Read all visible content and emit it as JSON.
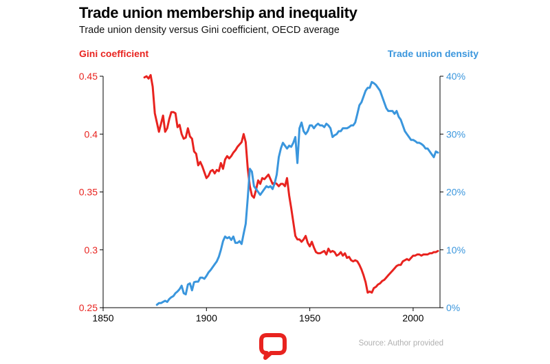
{
  "colors": {
    "gini": "#e8231f",
    "union": "#3a96dd",
    "axis": "#000000",
    "source": "#b0b0b0",
    "logo": "#e8231f"
  },
  "header": {
    "title": "Trade union membership and inequality",
    "subtitle": "Trade union density versus Gini coefficient, OECD average"
  },
  "footer": {
    "source": "Source: Author provided",
    "logo_icon": "speech-bubble-logo-icon"
  },
  "chart_data": {
    "type": "line",
    "title": "Trade union membership and inequality",
    "subtitle": "Trade union density versus Gini coefficient, OECD average",
    "xlabel": "",
    "xlim": [
      1850,
      2013
    ],
    "xticks": [
      1850,
      1900,
      1950,
      2000
    ],
    "ylabel_left": "Gini coefficient",
    "ylim_left": [
      0.25,
      0.45
    ],
    "yticks_left": [
      "0.25",
      "0.3",
      "0.35",
      "0.4",
      "0.45"
    ],
    "ylabel_right": "Trade union density",
    "ylim_right": [
      0,
      40
    ],
    "yticks_right": [
      "0%",
      "10%",
      "20%",
      "30%",
      "40%"
    ],
    "grid": false,
    "series": [
      {
        "name": "Gini coefficient",
        "axis": "left",
        "x": [
          1870,
          1871,
          1872,
          1873,
          1874,
          1875,
          1876,
          1877,
          1878,
          1879,
          1880,
          1881,
          1882,
          1883,
          1884,
          1885,
          1886,
          1887,
          1888,
          1889,
          1890,
          1891,
          1892,
          1893,
          1894,
          1895,
          1896,
          1897,
          1898,
          1899,
          1900,
          1901,
          1902,
          1903,
          1904,
          1905,
          1906,
          1907,
          1908,
          1909,
          1910,
          1911,
          1912,
          1913,
          1914,
          1915,
          1916,
          1917,
          1918,
          1919,
          1920,
          1921,
          1922,
          1923,
          1924,
          1925,
          1926,
          1927,
          1928,
          1929,
          1930,
          1931,
          1932,
          1933,
          1934,
          1935,
          1936,
          1937,
          1938,
          1939,
          1940,
          1941,
          1942,
          1943,
          1944,
          1945,
          1946,
          1947,
          1948,
          1949,
          1950,
          1951,
          1952,
          1953,
          1954,
          1955,
          1956,
          1957,
          1958,
          1959,
          1960,
          1961,
          1962,
          1963,
          1964,
          1965,
          1966,
          1967,
          1968,
          1969,
          1970,
          1971,
          1972,
          1973,
          1974,
          1975,
          1976,
          1977,
          1978,
          1979,
          1980,
          1981,
          1982,
          1983,
          1984,
          1985,
          1986,
          1987,
          1988,
          1989,
          1990,
          1991,
          1992,
          1993,
          1994,
          1995,
          1996,
          1997,
          1998,
          1999,
          2000,
          2001,
          2002,
          2003,
          2004,
          2005,
          2006,
          2007,
          2008,
          2009,
          2010,
          2011,
          2012
        ],
        "values": [
          0.449,
          0.45,
          0.448,
          0.451,
          0.441,
          0.418,
          0.41,
          0.402,
          0.409,
          0.416,
          0.402,
          0.405,
          0.413,
          0.419,
          0.419,
          0.418,
          0.406,
          0.408,
          0.4,
          0.396,
          0.397,
          0.405,
          0.398,
          0.396,
          0.385,
          0.383,
          0.373,
          0.376,
          0.372,
          0.367,
          0.362,
          0.364,
          0.368,
          0.369,
          0.366,
          0.369,
          0.368,
          0.375,
          0.37,
          0.378,
          0.381,
          0.379,
          0.381,
          0.384,
          0.386,
          0.389,
          0.391,
          0.393,
          0.4,
          0.393,
          0.37,
          0.355,
          0.347,
          0.345,
          0.352,
          0.36,
          0.357,
          0.362,
          0.361,
          0.363,
          0.365,
          0.361,
          0.357,
          0.358,
          0.357,
          0.355,
          0.357,
          0.357,
          0.355,
          0.362,
          0.347,
          0.336,
          0.324,
          0.312,
          0.309,
          0.309,
          0.307,
          0.309,
          0.312,
          0.306,
          0.303,
          0.307,
          0.302,
          0.298,
          0.297,
          0.297,
          0.298,
          0.299,
          0.296,
          0.301,
          0.298,
          0.299,
          0.298,
          0.295,
          0.296,
          0.298,
          0.295,
          0.297,
          0.293,
          0.294,
          0.291,
          0.29,
          0.291,
          0.29,
          0.287,
          0.283,
          0.278,
          0.272,
          0.263,
          0.264,
          0.263,
          0.267,
          0.268,
          0.27,
          0.271,
          0.273,
          0.274,
          0.276,
          0.278,
          0.28,
          0.282,
          0.284,
          0.286,
          0.287,
          0.287,
          0.29,
          0.291,
          0.292,
          0.291,
          0.293,
          0.295,
          0.295,
          0.296,
          0.296,
          0.295,
          0.296,
          0.296,
          0.296,
          0.297,
          0.297,
          0.298,
          0.298,
          0.299
        ]
      },
      {
        "name": "Trade union density",
        "axis": "right",
        "x": [
          1876,
          1877,
          1878,
          1879,
          1880,
          1881,
          1882,
          1883,
          1884,
          1885,
          1886,
          1887,
          1888,
          1889,
          1890,
          1891,
          1892,
          1893,
          1894,
          1895,
          1896,
          1897,
          1898,
          1899,
          1900,
          1901,
          1902,
          1903,
          1904,
          1905,
          1906,
          1907,
          1908,
          1909,
          1910,
          1911,
          1912,
          1913,
          1914,
          1915,
          1916,
          1917,
          1918,
          1919,
          1920,
          1921,
          1922,
          1923,
          1924,
          1925,
          1926,
          1927,
          1928,
          1929,
          1930,
          1931,
          1932,
          1933,
          1934,
          1935,
          1936,
          1937,
          1938,
          1939,
          1940,
          1941,
          1942,
          1943,
          1944,
          1945,
          1946,
          1947,
          1948,
          1949,
          1950,
          1951,
          1952,
          1953,
          1954,
          1955,
          1956,
          1957,
          1958,
          1959,
          1960,
          1961,
          1962,
          1963,
          1964,
          1965,
          1966,
          1967,
          1968,
          1969,
          1970,
          1971,
          1972,
          1973,
          1974,
          1975,
          1976,
          1977,
          1978,
          1979,
          1980,
          1981,
          1982,
          1983,
          1984,
          1985,
          1986,
          1987,
          1988,
          1989,
          1990,
          1991,
          1992,
          1993,
          1994,
          1995,
          1996,
          1997,
          1998,
          1999,
          2000,
          2001,
          2002,
          2003,
          2004,
          2005,
          2006,
          2007,
          2008,
          2009,
          2010,
          2011,
          2012
        ],
        "values": [
          0.5,
          0.8,
          0.8,
          1.0,
          1.2,
          1.0,
          1.5,
          1.8,
          2.0,
          2.5,
          2.8,
          3.2,
          3.8,
          2.5,
          2.3,
          4.0,
          4.2,
          3.0,
          4.4,
          4.5,
          4.5,
          5.2,
          5.2,
          5.0,
          5.5,
          6.1,
          6.5,
          7.0,
          7.5,
          8.0,
          8.8,
          10.0,
          11.5,
          12.3,
          12.0,
          12.2,
          11.7,
          12.3,
          11.2,
          11.2,
          11.5,
          11.0,
          12.8,
          14.5,
          19.0,
          24.0,
          23.5,
          21.0,
          20.5,
          20.0,
          19.5,
          20.0,
          20.5,
          21.0,
          20.8,
          21.0,
          20.5,
          21.5,
          23.0,
          26.0,
          27.5,
          28.5,
          28.0,
          27.5,
          28.0,
          27.8,
          28.5,
          29.5,
          25.0,
          31.0,
          32.0,
          30.5,
          30.0,
          30.5,
          31.5,
          31.5,
          31.0,
          31.5,
          31.8,
          31.5,
          31.5,
          31.2,
          31.8,
          31.5,
          31.0,
          29.5,
          29.8,
          30.0,
          30.5,
          30.5,
          31.0,
          31.0,
          31.0,
          31.2,
          31.5,
          31.5,
          32.0,
          33.5,
          35.0,
          35.5,
          36.5,
          37.5,
          38.0,
          38.0,
          39.0,
          38.8,
          38.5,
          38.0,
          37.5,
          36.5,
          35.5,
          34.5,
          34.0,
          34.0,
          34.0,
          33.5,
          34.0,
          33.0,
          32.5,
          31.5,
          30.5,
          30.0,
          29.5,
          29.0,
          29.0,
          28.8,
          28.5,
          28.5,
          28.3,
          28.0,
          27.5,
          27.5,
          27.0,
          26.5,
          26.0,
          27.0,
          26.8
        ]
      }
    ]
  }
}
